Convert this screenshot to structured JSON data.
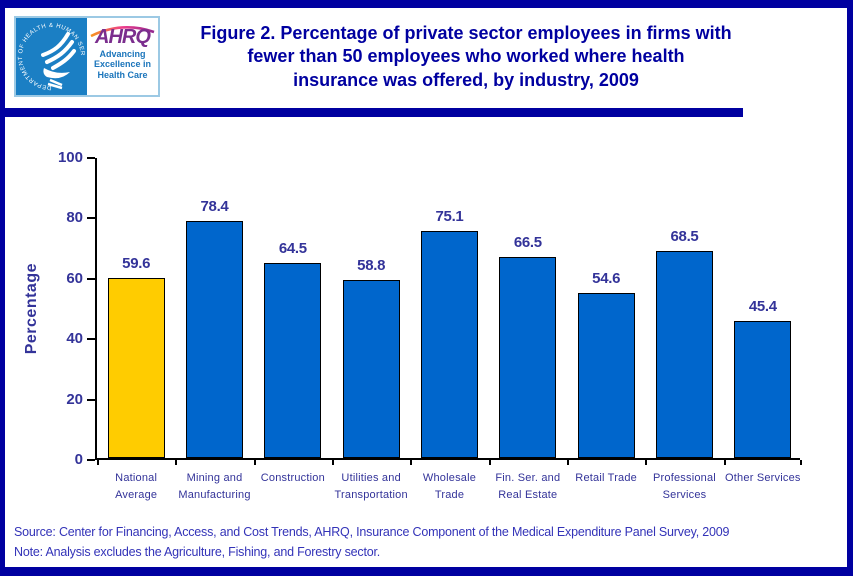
{
  "header": {
    "title_lines": [
      "Figure 2. Percentage of private sector employees in firms with",
      "fewer than 50 employees who worked where health",
      "insurance was offered, by industry, 2009"
    ],
    "logo": {
      "hhs_circle_text": "DEPARTMENT OF HEALTH & HUMAN SERVICES · USA",
      "ahrq_acronym": "AHRQ",
      "tagline_lines": [
        "Advancing",
        "Excellence in",
        "Health Care"
      ]
    }
  },
  "chart_data": {
    "type": "bar",
    "title": "Figure 2. Percentage of private sector employees in firms with fewer than 50 employees who worked where health insurance was offered, by industry, 2009",
    "xlabel": "",
    "ylabel": "Percentage",
    "ylim": [
      0,
      100
    ],
    "ytick_step": 20,
    "grid": false,
    "legend": false,
    "categories": [
      "National Average",
      "Mining and Manufacturing",
      "Construction",
      "Utilities and Transportation",
      "Wholesale Trade",
      "Fin. Ser. and Real Estate",
      "Retail Trade",
      "Professional Services",
      "Other Services"
    ],
    "category_label_lines": [
      [
        "National",
        "Average"
      ],
      [
        "Mining and",
        "Manufacturing"
      ],
      [
        "Construction"
      ],
      [
        "Utilities and",
        "Transportation"
      ],
      [
        "Wholesale",
        "Trade"
      ],
      [
        "Fin. Ser. and",
        "Real Estate"
      ],
      [
        "Retail Trade"
      ],
      [
        "Professional",
        "Services"
      ],
      [
        "Other Services"
      ]
    ],
    "values": [
      59.6,
      78.4,
      64.5,
      58.8,
      75.1,
      66.5,
      54.6,
      68.5,
      45.4
    ],
    "highlight_index": 0
  },
  "footer": {
    "source": "Source: Center for Financing, Access, and Cost Trends, AHRQ, Insurance Component of the Medical Expenditure Panel Survey, 2009",
    "note": "Note: Analysis excludes the Agriculture, Fishing, and Forestry sector."
  },
  "colors": {
    "frame_navy": "#0000A0",
    "title_navy": "#0000A0",
    "bar_blue": "#0066CC",
    "bar_gold": "#FFCC00",
    "bar_outline": "#000000",
    "axis_text": "#333399",
    "footer_text": "#3333B8",
    "hhs_blue": "#1B7FC4",
    "ahrq_purple": "#7B2E8E",
    "tagline_blue": "#1B75BB"
  }
}
